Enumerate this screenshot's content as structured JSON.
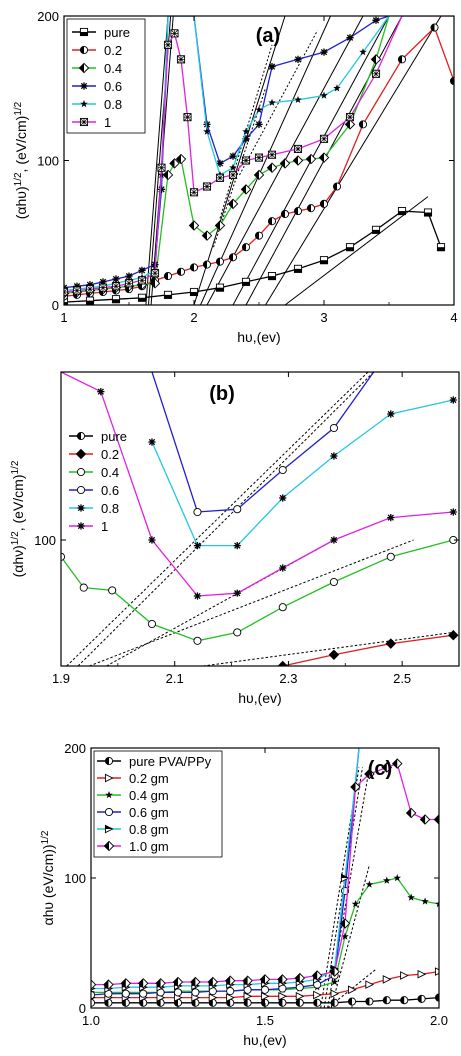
{
  "colors": {
    "pure": "#000000",
    "0.2": "#e02020",
    "0.4": "#20c020",
    "0.6": "#2020d0",
    "0.8": "#20c8e0",
    "1": "#e020e0",
    "fit": "#000000"
  },
  "chart_data": [
    {
      "type": "line",
      "panel_label": "(a)",
      "xlabel": "hυ,(ev)",
      "ylabel": "(αhυ)^1/2, (eV/cm)^1/2",
      "xlim": [
        1,
        4
      ],
      "ylim": [
        0,
        200
      ],
      "x_ticks": [
        1,
        2,
        3,
        4
      ],
      "y_ticks": [
        0,
        100,
        200
      ],
      "legend_position": "top-left",
      "grid": false,
      "series": [
        {
          "name": "pure",
          "marker": "half-square",
          "color_key": "pure",
          "x": [
            1.0,
            1.2,
            1.4,
            1.6,
            1.8,
            2.0,
            2.2,
            2.4,
            2.6,
            2.8,
            3.0,
            3.2,
            3.4,
            3.6,
            3.8,
            3.9
          ],
          "y": [
            2,
            3,
            4,
            5,
            7,
            9,
            12,
            16,
            20,
            25,
            31,
            40,
            52,
            65,
            64,
            40
          ]
        },
        {
          "name": "0.2",
          "marker": "half-circle",
          "color_key": "0.2",
          "x": [
            1.0,
            1.1,
            1.2,
            1.3,
            1.4,
            1.5,
            1.6,
            1.7,
            1.8,
            1.9,
            2.0,
            2.1,
            2.2,
            2.3,
            2.4,
            2.5,
            2.6,
            2.7,
            2.8,
            2.9,
            3.0,
            3.1,
            3.3,
            3.6,
            3.85,
            4.0
          ],
          "y": [
            6,
            7,
            8,
            9,
            10,
            11,
            13,
            17,
            20,
            23,
            26,
            28,
            30,
            33,
            40,
            48,
            58,
            63,
            65,
            67,
            70,
            82,
            125,
            170,
            192,
            155
          ]
        },
        {
          "name": "0.4",
          "marker": "half-diamond",
          "color_key": "0.4",
          "x": [
            1.0,
            1.1,
            1.2,
            1.3,
            1.4,
            1.5,
            1.6,
            1.7,
            1.8,
            1.85,
            1.9,
            2.0,
            2.1,
            2.2,
            2.3,
            2.4,
            2.5,
            2.6,
            2.7,
            2.8,
            2.9,
            3.0,
            3.2,
            3.4,
            3.5
          ],
          "y": [
            8,
            9,
            10,
            11,
            12,
            13,
            14,
            15,
            90,
            98,
            101,
            55,
            48,
            55,
            70,
            80,
            90,
            95,
            98,
            100,
            101,
            102,
            125,
            170,
            200
          ]
        },
        {
          "name": "0.6",
          "marker": "asterisk",
          "color_key": "0.6",
          "x": [
            1.0,
            1.1,
            1.2,
            1.3,
            1.4,
            1.5,
            1.6,
            1.7,
            1.75,
            1.8,
            1.9,
            2.0,
            2.1,
            2.2,
            2.3,
            2.4,
            2.5,
            2.6,
            2.8,
            3.0,
            3.2,
            3.4,
            3.5
          ],
          "y": [
            12,
            13,
            14,
            16,
            18,
            20,
            24,
            28,
            80,
            200,
            200,
            200,
            125,
            98,
            103,
            115,
            125,
            165,
            170,
            175,
            185,
            197,
            200
          ]
        },
        {
          "name": "0.8",
          "marker": "star",
          "color_key": "0.8",
          "x": [
            1.0,
            1.1,
            1.2,
            1.3,
            1.4,
            1.5,
            1.6,
            1.7,
            1.75,
            1.8,
            1.9,
            2.0,
            2.1,
            2.2,
            2.3,
            2.4,
            2.5,
            2.6,
            2.8,
            3.0,
            3.1,
            3.3,
            3.5
          ],
          "y": [
            10,
            11,
            12,
            13,
            15,
            17,
            19,
            24,
            90,
            200,
            200,
            200,
            120,
            90,
            95,
            120,
            135,
            140,
            142,
            145,
            150,
            175,
            200
          ]
        },
        {
          "name": "1",
          "marker": "crossed-square",
          "color_key": "1",
          "x": [
            1.0,
            1.1,
            1.2,
            1.3,
            1.4,
            1.5,
            1.6,
            1.7,
            1.75,
            1.8,
            1.85,
            1.9,
            1.95,
            2.0,
            2.1,
            2.2,
            2.3,
            2.4,
            2.5,
            2.6,
            2.8,
            3.0,
            3.2,
            3.4,
            3.6,
            3.8,
            4.0
          ],
          "y": [
            9,
            10,
            11,
            12,
            13,
            15,
            17,
            22,
            95,
            180,
            188,
            170,
            130,
            78,
            82,
            88,
            90,
            100,
            102,
            104,
            108,
            115,
            130,
            160,
            200,
            200,
            200
          ]
        }
      ],
      "fit_lines": [
        {
          "x": [
            1.63,
            1.8
          ],
          "y": [
            0,
            200
          ]
        },
        {
          "x": [
            1.65,
            1.82
          ],
          "y": [
            0,
            200
          ]
        },
        {
          "x": [
            1.67,
            1.84
          ],
          "y": [
            0,
            200
          ]
        },
        {
          "x": [
            2.05,
            3.05
          ],
          "y": [
            0,
            200
          ]
        },
        {
          "x": [
            2.1,
            3.3
          ],
          "y": [
            0,
            200
          ]
        },
        {
          "x": [
            2.3,
            3.5
          ],
          "y": [
            0,
            200
          ]
        },
        {
          "x": [
            2.4,
            3.6
          ],
          "y": [
            0,
            200
          ]
        },
        {
          "x": [
            2.55,
            3.9
          ],
          "y": [
            0,
            200
          ]
        },
        {
          "x": [
            2.7,
            3.8
          ],
          "y": [
            0,
            75
          ]
        },
        {
          "x": [
            2.0,
            2.7
          ],
          "y": [
            0,
            200
          ]
        }
      ]
    },
    {
      "type": "line",
      "panel_label": "(b)",
      "xlabel": "hυ,(ev)",
      "ylabel": "(αhν)^1/2, (eV/cm)^1/2",
      "xlim": [
        1.9,
        2.6
      ],
      "ylim": [
        55,
        160
      ],
      "x_ticks": [
        1.9,
        2.1,
        2.3,
        2.5
      ],
      "y_ticks": [
        100
      ],
      "legend_position": "left",
      "grid": false,
      "series": [
        {
          "name": "pure",
          "marker": "half-circle",
          "color_key": "pure",
          "x": [],
          "y": []
        },
        {
          "name": "0.2",
          "marker": "diamond",
          "color_key": "0.2",
          "x": [
            2.29,
            2.38,
            2.48,
            2.59
          ],
          "y": [
            55,
            59,
            63,
            66
          ]
        },
        {
          "name": "0.4",
          "marker": "open-circle",
          "color_key": "0.4",
          "x": [
            1.9,
            1.94,
            1.99,
            2.06,
            2.14,
            2.21,
            2.29,
            2.38,
            2.48,
            2.59
          ],
          "y": [
            94,
            83,
            82,
            70,
            64,
            67,
            76,
            85,
            94,
            100
          ]
        },
        {
          "name": "0.6",
          "marker": "open-circle",
          "color_key": "0.6",
          "x": [
            2.06,
            2.14,
            2.21,
            2.29,
            2.38,
            2.45
          ],
          "y": [
            160,
            110,
            111,
            125,
            140,
            160
          ]
        },
        {
          "name": "0.8",
          "marker": "asterisk",
          "color_key": "0.8",
          "x": [
            2.06,
            2.14,
            2.21,
            2.29,
            2.38,
            2.48,
            2.59
          ],
          "y": [
            135,
            98,
            98,
            115,
            130,
            145,
            150
          ]
        },
        {
          "name": "1",
          "marker": "asterisk",
          "color_key": "1",
          "x": [
            1.9,
            1.97,
            2.06,
            2.14,
            2.21,
            2.29,
            2.38,
            2.48,
            2.59
          ],
          "y": [
            160,
            153,
            100,
            80,
            81,
            90,
            100,
            108,
            110
          ]
        }
      ],
      "fit_lines": [
        {
          "x": [
            1.91,
            2.44
          ],
          "y": [
            55,
            160
          ]
        },
        {
          "x": [
            1.93,
            2.45
          ],
          "y": [
            55,
            160
          ]
        },
        {
          "x": [
            1.95,
            2.52
          ],
          "y": [
            55,
            100
          ]
        },
        {
          "x": [
            1.98,
            2.38
          ],
          "y": [
            55,
            100
          ]
        },
        {
          "x": [
            2.15,
            2.59
          ],
          "y": [
            55,
            67
          ]
        }
      ]
    },
    {
      "type": "line",
      "panel_label": "(c)",
      "xlabel": "hυ,(ev)",
      "ylabel": "αhυ (eV/cm))^1/2",
      "xlim": [
        1.0,
        2.0
      ],
      "ylim": [
        0,
        200
      ],
      "x_ticks": [
        1.0,
        1.5,
        2.0
      ],
      "y_ticks": [
        0,
        100,
        200
      ],
      "legend_position": "top-left",
      "grid": false,
      "series": [
        {
          "name": "pure PVA/PPy",
          "marker": "half-circle",
          "color_key": "pure",
          "x": [
            1.0,
            1.05,
            1.1,
            1.15,
            1.2,
            1.25,
            1.3,
            1.35,
            1.4,
            1.45,
            1.5,
            1.55,
            1.6,
            1.65,
            1.7,
            1.75,
            1.8,
            1.85,
            1.9,
            1.95,
            2.0
          ],
          "y": [
            4,
            4,
            4,
            4,
            4,
            4,
            4,
            4,
            4,
            4,
            4,
            4,
            4,
            4,
            4,
            5,
            5,
            6,
            6,
            7,
            8
          ]
        },
        {
          "name": "0.2 gm",
          "marker": "triangle-right",
          "color_key": "0.2",
          "x": [
            1.0,
            1.05,
            1.1,
            1.15,
            1.2,
            1.25,
            1.3,
            1.35,
            1.4,
            1.45,
            1.5,
            1.55,
            1.6,
            1.65,
            1.7,
            1.75,
            1.8,
            1.85,
            1.9,
            1.95,
            2.0
          ],
          "y": [
            8,
            8,
            8,
            8,
            8,
            8,
            8,
            8,
            8,
            9,
            9,
            9,
            9,
            10,
            11,
            14,
            18,
            22,
            25,
            26,
            28
          ]
        },
        {
          "name": "0.4 gm",
          "marker": "star",
          "color_key": "0.4",
          "x": [
            1.0,
            1.05,
            1.1,
            1.15,
            1.2,
            1.25,
            1.3,
            1.35,
            1.4,
            1.45,
            1.5,
            1.55,
            1.6,
            1.65,
            1.7,
            1.73,
            1.76,
            1.8,
            1.85,
            1.88,
            1.92,
            1.96,
            2.0
          ],
          "y": [
            12,
            12,
            12,
            12,
            12,
            13,
            13,
            13,
            13,
            14,
            14,
            14,
            15,
            16,
            20,
            55,
            80,
            95,
            98,
            100,
            85,
            82,
            80
          ]
        },
        {
          "name": "0.6 gm",
          "marker": "open-circle",
          "color_key": "0.6",
          "x": [
            1.0,
            1.05,
            1.1,
            1.15,
            1.2,
            1.25,
            1.3,
            1.35,
            1.4,
            1.45,
            1.5,
            1.55,
            1.6,
            1.65,
            1.7,
            1.73,
            1.77
          ],
          "y": [
            10,
            11,
            11,
            11,
            12,
            12,
            12,
            13,
            13,
            14,
            14,
            15,
            16,
            18,
            25,
            90,
            200
          ]
        },
        {
          "name": "0.8 gm",
          "marker": "triangle-right-half",
          "color_key": "0.8",
          "x": [
            1.0,
            1.05,
            1.1,
            1.15,
            1.2,
            1.25,
            1.3,
            1.35,
            1.4,
            1.45,
            1.5,
            1.55,
            1.6,
            1.65,
            1.7,
            1.73,
            1.77
          ],
          "y": [
            15,
            15,
            16,
            16,
            16,
            17,
            17,
            17,
            18,
            18,
            19,
            19,
            20,
            22,
            30,
            100,
            200
          ]
        },
        {
          "name": "1.0 gm",
          "marker": "diamond-half",
          "color_key": "1",
          "x": [
            1.0,
            1.05,
            1.1,
            1.15,
            1.2,
            1.25,
            1.3,
            1.35,
            1.4,
            1.45,
            1.5,
            1.55,
            1.6,
            1.65,
            1.7,
            1.73,
            1.76,
            1.8,
            1.85,
            1.88,
            1.92,
            1.96,
            2.0
          ],
          "y": [
            18,
            18,
            19,
            19,
            19,
            20,
            20,
            20,
            21,
            21,
            22,
            22,
            23,
            25,
            28,
            65,
            170,
            180,
            185,
            188,
            150,
            145,
            145
          ]
        }
      ],
      "fit_lines": [
        {
          "x": [
            1.66,
            1.77
          ],
          "y": [
            0,
            185
          ]
        },
        {
          "x": [
            1.67,
            1.78
          ],
          "y": [
            0,
            185
          ]
        },
        {
          "x": [
            1.68,
            1.8
          ],
          "y": [
            0,
            185
          ]
        },
        {
          "x": [
            1.69,
            1.8
          ],
          "y": [
            0,
            110
          ]
        },
        {
          "x": [
            1.68,
            1.82
          ],
          "y": [
            0,
            30
          ]
        }
      ]
    }
  ]
}
